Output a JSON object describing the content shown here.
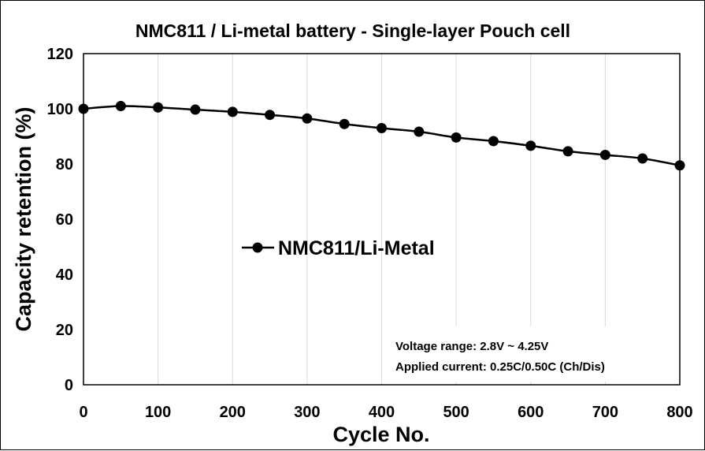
{
  "chart_data": {
    "type": "line",
    "title": "NMC811 / Li-metal battery -  Single-layer Pouch cell",
    "xlabel": "Cycle No.",
    "ylabel": "Capacity retention (%)",
    "xlim": [
      0,
      800
    ],
    "ylim": [
      0,
      120
    ],
    "xticks": [
      "0",
      "100",
      "200",
      "300",
      "400",
      "500",
      "600",
      "700",
      "800"
    ],
    "yticks": [
      "0",
      "20",
      "40",
      "60",
      "80",
      "100",
      "120"
    ],
    "grid": "vertical",
    "legend_position": "center-left",
    "series": [
      {
        "name": "NMC811/Li-Metal",
        "color": "#000000",
        "marker": "circle",
        "x": [
          0,
          50,
          100,
          150,
          200,
          250,
          300,
          350,
          400,
          450,
          500,
          550,
          600,
          650,
          700,
          750,
          800
        ],
        "y": [
          100,
          101,
          100.5,
          99.7,
          98.9,
          97.8,
          96.5,
          94.5,
          93,
          91.7,
          89.6,
          88.3,
          86.6,
          84.6,
          83.3,
          82,
          79.5
        ]
      }
    ],
    "annotations": [
      "Voltage range: 2.8V ~ 4.25V",
      "Applied current: 0.25C/0.50C (Ch/Dis)"
    ]
  }
}
